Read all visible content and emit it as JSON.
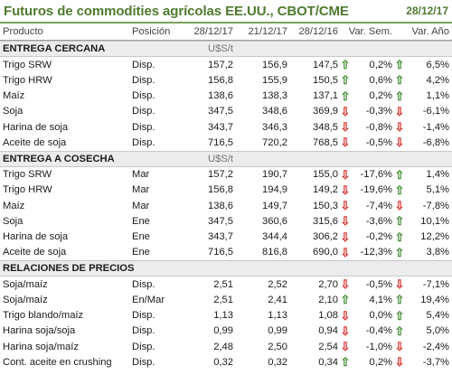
{
  "title": "Futuros de commodities agrícolas EE.UU., CBOT/CME",
  "date": "28/12/17",
  "columns": [
    "Producto",
    "Posición",
    "28/12/17",
    "21/12/17",
    "28/12/16",
    "Var. Sem.",
    "Var. Año"
  ],
  "colors": {
    "accent": "#4e7a2e",
    "up": "#3e8e2e",
    "down": "#d9302b",
    "section_bg": "#ececec"
  },
  "sections": [
    {
      "title": "ENTREGA CERCANA",
      "unit": "U$S/t",
      "rows": [
        {
          "name": "Trigo SRW",
          "pos": "Disp.",
          "v1": "157,2",
          "v2": "156,9",
          "v3": "147,5",
          "a1": "up",
          "vs": "0,2%",
          "a2": "up",
          "va": "6,5%"
        },
        {
          "name": "Trigo HRW",
          "pos": "Disp.",
          "v1": "156,8",
          "v2": "155,9",
          "v3": "150,5",
          "a1": "up",
          "vs": "0,6%",
          "a2": "up",
          "va": "4,2%"
        },
        {
          "name": "Maíz",
          "pos": "Disp.",
          "v1": "138,6",
          "v2": "138,3",
          "v3": "137,1",
          "a1": "up",
          "vs": "0,2%",
          "a2": "up",
          "va": "1,1%"
        },
        {
          "name": "Soja",
          "pos": "Disp.",
          "v1": "347,5",
          "v2": "348,6",
          "v3": "369,9",
          "a1": "down",
          "vs": "-0,3%",
          "a2": "down",
          "va": "-6,1%"
        },
        {
          "name": "Harina de soja",
          "pos": "Disp.",
          "v1": "343,7",
          "v2": "346,3",
          "v3": "348,5",
          "a1": "down",
          "vs": "-0,8%",
          "a2": "down",
          "va": "-1,4%"
        },
        {
          "name": "Aceite de soja",
          "pos": "Disp.",
          "v1": "716,5",
          "v2": "720,2",
          "v3": "768,5",
          "a1": "down",
          "vs": "-0,5%",
          "a2": "down",
          "va": "-6,8%"
        }
      ]
    },
    {
      "title": "ENTREGA A COSECHA",
      "unit": "U$S/t",
      "rows": [
        {
          "name": "Trigo SRW",
          "pos": "Mar",
          "v1": "157,2",
          "v2": "190,7",
          "v3": "155,0",
          "a1": "down",
          "vs": "-17,6%",
          "a2": "up",
          "va": "1,4%"
        },
        {
          "name": "Trigo HRW",
          "pos": "Mar",
          "v1": "156,8",
          "v2": "194,9",
          "v3": "149,2",
          "a1": "down",
          "vs": "-19,6%",
          "a2": "up",
          "va": "5,1%"
        },
        {
          "name": "Maíz",
          "pos": "Mar",
          "v1": "138,6",
          "v2": "149,7",
          "v3": "150,3",
          "a1": "down",
          "vs": "-7,4%",
          "a2": "down",
          "va": "-7,8%"
        },
        {
          "name": "Soja",
          "pos": "Ene",
          "v1": "347,5",
          "v2": "360,6",
          "v3": "315,6",
          "a1": "down",
          "vs": "-3,6%",
          "a2": "up",
          "va": "10,1%"
        },
        {
          "name": "Harina de soja",
          "pos": "Ene",
          "v1": "343,7",
          "v2": "344,4",
          "v3": "306,2",
          "a1": "down",
          "vs": "-0,2%",
          "a2": "up",
          "va": "12,2%"
        },
        {
          "name": "Aceite de soja",
          "pos": "Ene",
          "v1": "716,5",
          "v2": "816,8",
          "v3": "690,0",
          "a1": "down",
          "vs": "-12,3%",
          "a2": "up",
          "va": "3,8%"
        }
      ]
    },
    {
      "title": "RELACIONES DE PRECIOS",
      "unit": "",
      "rows": [
        {
          "name": "Soja/maíz",
          "pos": "Disp.",
          "v1": "2,51",
          "v2": "2,52",
          "v3": "2,70",
          "a1": "down",
          "vs": "-0,5%",
          "a2": "down",
          "va": "-7,1%"
        },
        {
          "name": "Soja/maíz",
          "pos": "En/Mar",
          "v1": "2,51",
          "v2": "2,41",
          "v3": "2,10",
          "a1": "up",
          "vs": "4,1%",
          "a2": "up",
          "va": "19,4%"
        },
        {
          "name": "Trigo blando/maíz",
          "pos": "Disp.",
          "v1": "1,13",
          "v2": "1,13",
          "v3": "1,08",
          "a1": "down",
          "vs": "0,0%",
          "a2": "up",
          "va": "5,4%"
        },
        {
          "name": "Harina soja/soja",
          "pos": "Disp.",
          "v1": "0,99",
          "v2": "0,99",
          "v3": "0,94",
          "a1": "down",
          "vs": "-0,4%",
          "a2": "up",
          "va": "5,0%"
        },
        {
          "name": "Harina soja/maíz",
          "pos": "Disp.",
          "v1": "2,48",
          "v2": "2,50",
          "v3": "2,54",
          "a1": "down",
          "vs": "-1,0%",
          "a2": "down",
          "va": "-2,4%"
        },
        {
          "name": "Cont. aceite en crushing",
          "pos": "Disp.",
          "v1": "0,32",
          "v2": "0,32",
          "v3": "0,34",
          "a1": "up",
          "vs": "0,2%",
          "a2": "down",
          "va": "-3,7%"
        }
      ]
    }
  ]
}
